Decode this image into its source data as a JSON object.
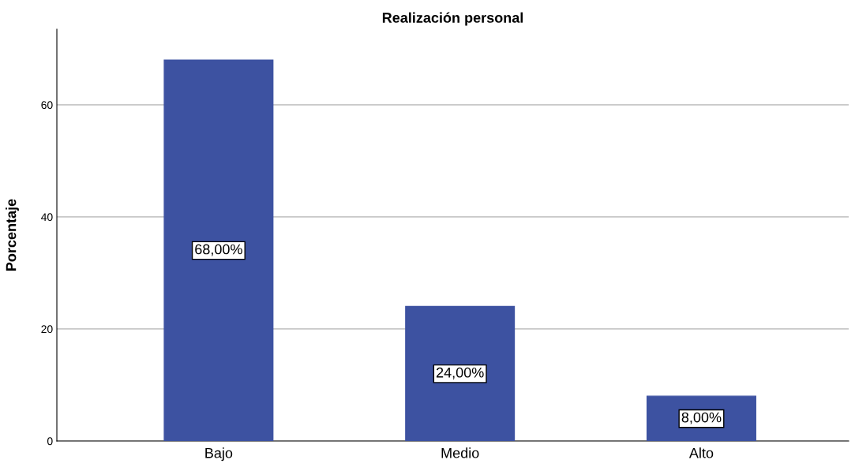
{
  "chart_data": {
    "type": "bar",
    "title": "Realización personal",
    "ylabel": "Porcentaje",
    "categories": [
      "Bajo",
      "Medio",
      "Alto"
    ],
    "values": [
      68,
      24,
      8
    ],
    "value_labels": [
      "68,00%",
      "24,00%",
      "8,00%"
    ],
    "color": "#3d52a1",
    "ylim": [
      0,
      73.5
    ],
    "yticks": [
      0,
      20,
      40,
      60
    ],
    "grid": "y"
  }
}
